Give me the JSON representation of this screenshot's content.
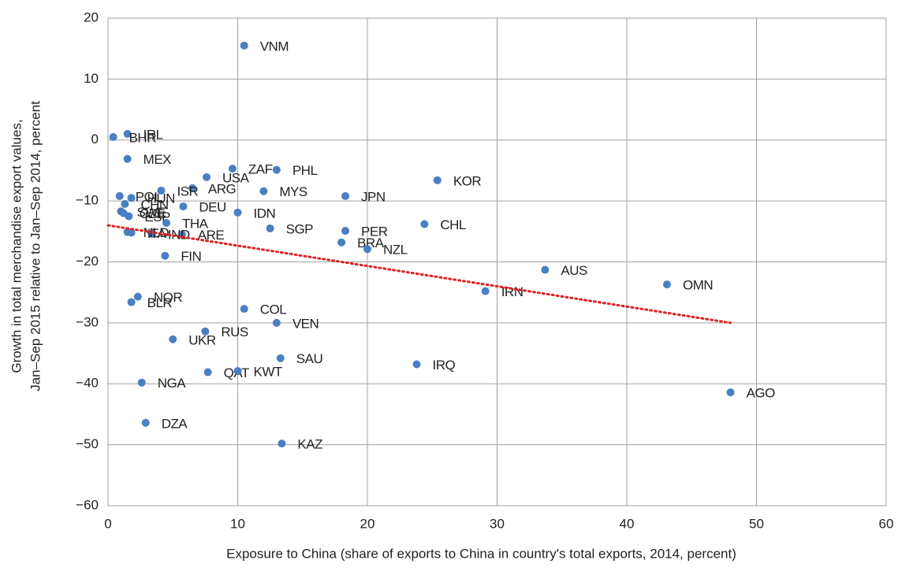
{
  "chart_data": {
    "type": "scatter",
    "x_label": "Exposure to China (share of exports to China in country's total exports, 2014, percent)",
    "y_label": [
      "Growth in total merchandise export values,",
      "Jan–Sep 2015 relative to Jan–Sep 2014, percent"
    ],
    "xlim": [
      0,
      60
    ],
    "xticks": [
      0,
      10,
      20,
      30,
      40,
      50,
      60
    ],
    "ylim": [
      -60,
      20
    ],
    "yticks": [
      {
        "value": -60,
        "label": "−60"
      },
      {
        "value": -50,
        "label": "−50"
      },
      {
        "value": -40,
        "label": "−40"
      },
      {
        "value": -30,
        "label": "−30"
      },
      {
        "value": -20,
        "label": "−20"
      },
      {
        "value": -10,
        "label": "−10"
      },
      0,
      10,
      20
    ],
    "grid": true,
    "series": [
      {
        "color": "#4a7fc1",
        "labels": [
          "VNM",
          "IRL",
          "BHR",
          "MEX",
          "ZAF",
          "PHL",
          "USA",
          "ARG",
          "MYS",
          "JPN",
          "KOR",
          "ISR",
          "POL",
          "HUN",
          "DEU",
          "IDN",
          "CHL",
          "SGP",
          "PER",
          "BRA",
          "NZL",
          "FIN",
          "AUS",
          "OMN",
          "IRN",
          "NOR",
          "BLR",
          "COL",
          "VEN",
          "RUS",
          "UKR",
          "SAU",
          "IRQ",
          "QAT",
          "KWT",
          "NGA",
          "AGO",
          "DZA",
          "KAZ",
          "ARE",
          "CHN",
          "SWE",
          "CZE",
          "ESP",
          "ITA",
          "IND",
          "THA",
          "NLD"
        ],
        "x": [
          10.5,
          1.5,
          0.4,
          1.5,
          9.6,
          13.0,
          7.6,
          6.5,
          12.0,
          18.3,
          25.4,
          4.1,
          0.9,
          1.8,
          5.8,
          10.0,
          24.4,
          12.5,
          18.3,
          18.0,
          20.0,
          4.4,
          33.7,
          43.1,
          29.1,
          2.3,
          1.8,
          10.5,
          13.0,
          7.5,
          5.0,
          13.3,
          23.8,
          7.7,
          10.0,
          2.6,
          48.0,
          2.9,
          13.4,
          5.7,
          1.3,
          1.0,
          1.2,
          1.6,
          1.8,
          3.4,
          4.5,
          1.5
        ],
        "values": [
          15.5,
          1.0,
          0.5,
          -3.1,
          -4.7,
          -4.9,
          -6.1,
          -7.9,
          -8.4,
          -9.2,
          -6.6,
          -8.3,
          -9.2,
          -9.5,
          -10.9,
          -11.9,
          -13.8,
          -14.5,
          -14.9,
          -16.8,
          -17.9,
          -19.0,
          -21.3,
          -23.7,
          -24.8,
          -25.7,
          -26.6,
          -27.7,
          -30.0,
          -31.4,
          -32.7,
          -35.8,
          -36.8,
          -38.1,
          -37.9,
          -39.8,
          -41.4,
          -46.4,
          -49.8,
          -15.5,
          -10.5,
          -11.7,
          -12.0,
          -12.5,
          -15.2,
          -15.4,
          -13.6,
          -15.1
        ]
      }
    ],
    "trend": {
      "color": "#e02020",
      "x": [
        0,
        48
      ],
      "values": [
        -14,
        -30
      ]
    }
  }
}
